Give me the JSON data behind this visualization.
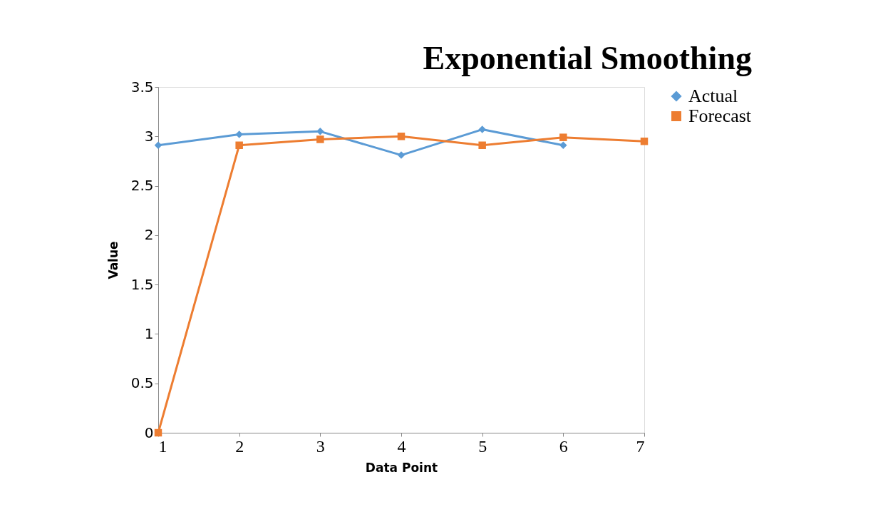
{
  "chart_data": {
    "type": "line",
    "title": "Exponential Smoothing",
    "xlabel": "Data Point",
    "ylabel": "Value",
    "x": [
      1,
      2,
      3,
      4,
      5,
      6,
      7
    ],
    "series": [
      {
        "name": "Actual",
        "color": "#5b9bd5",
        "marker": "diamond",
        "values": [
          2.91,
          3.02,
          3.05,
          2.81,
          3.07,
          2.91,
          null
        ]
      },
      {
        "name": "Forecast",
        "color": "#ed7d31",
        "marker": "square",
        "values": [
          0,
          2.91,
          2.97,
          3.0,
          2.91,
          2.99,
          2.95
        ]
      }
    ],
    "xlim": [
      1,
      7
    ],
    "xticks": [
      1,
      2,
      3,
      4,
      5,
      6,
      7
    ],
    "ylim": [
      0,
      3.5
    ],
    "yticks": [
      0,
      0.5,
      1,
      1.5,
      2,
      2.5,
      3,
      3.5
    ],
    "grid": false,
    "legend": "right",
    "line_style": "solid"
  }
}
